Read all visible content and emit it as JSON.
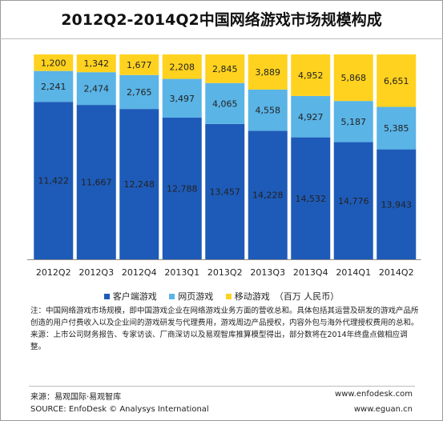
{
  "title": "2012Q2-2014Q2中国网络游戏市场规模构成",
  "colors": {
    "client": "#1e5bb8",
    "web": "#5ab4e6",
    "mobile": "#ffd21f"
  },
  "chart_data": {
    "type": "bar",
    "stacked": true,
    "categories": [
      "2012Q2",
      "2012Q3",
      "2012Q4",
      "2013Q1",
      "2013Q2",
      "2013Q3",
      "2013Q4",
      "2014Q1",
      "2014Q2"
    ],
    "series": [
      {
        "name": "客户端游戏",
        "values": [
          11422,
          11667,
          12248,
          12788,
          13457,
          14228,
          14532,
          14776,
          13943
        ]
      },
      {
        "name": "网页游戏",
        "values": [
          2241,
          2474,
          2765,
          3497,
          4065,
          4558,
          4927,
          5187,
          5385
        ]
      },
      {
        "name": "移动游戏",
        "values": [
          1200,
          1342,
          1677,
          2208,
          2845,
          3889,
          4952,
          5868,
          6651
        ]
      }
    ],
    "value_labels": [
      [
        "11,422",
        "11,667",
        "12,248",
        "12,788",
        "13,457",
        "14,228",
        "14,532",
        "14,776",
        "13,943"
      ],
      [
        "2,241",
        "2,474",
        "2,765",
        "3,497",
        "4,065",
        "4,558",
        "4,927",
        "5,187",
        "5,385"
      ],
      [
        "1,200",
        "1,342",
        "1,677",
        "2,208",
        "2,845",
        "3,889",
        "4,952",
        "5,868",
        "6,651"
      ]
    ],
    "display": "100% stacked (share of each quarter's total)",
    "legend_position": "bottom",
    "unit": "（百万 人民币）",
    "grid": false
  },
  "notes": {
    "note": "注：中国网络游戏市场规模，即中国游戏企业在网络游戏业务方面的营收总和。具体包括其运营及研发的游戏产品所创造的用户付费收入以及企业间的游戏研发与代理费用，游戏周边产品授权，内容外包与海外代理授权费用的总和。",
    "source": "来源：上市公司财务报告、专家访谈、厂商深访以及易观智库推算模型得出，部分数将在2014年终盘点做相应调整。"
  },
  "footer": {
    "source_cn": "来源：易观国际·易观智库",
    "source_en": "SOURCE: EnfoDesk © Analysys International",
    "site1": "www.enfodesk.com",
    "site2": "www.eguan.cn"
  }
}
